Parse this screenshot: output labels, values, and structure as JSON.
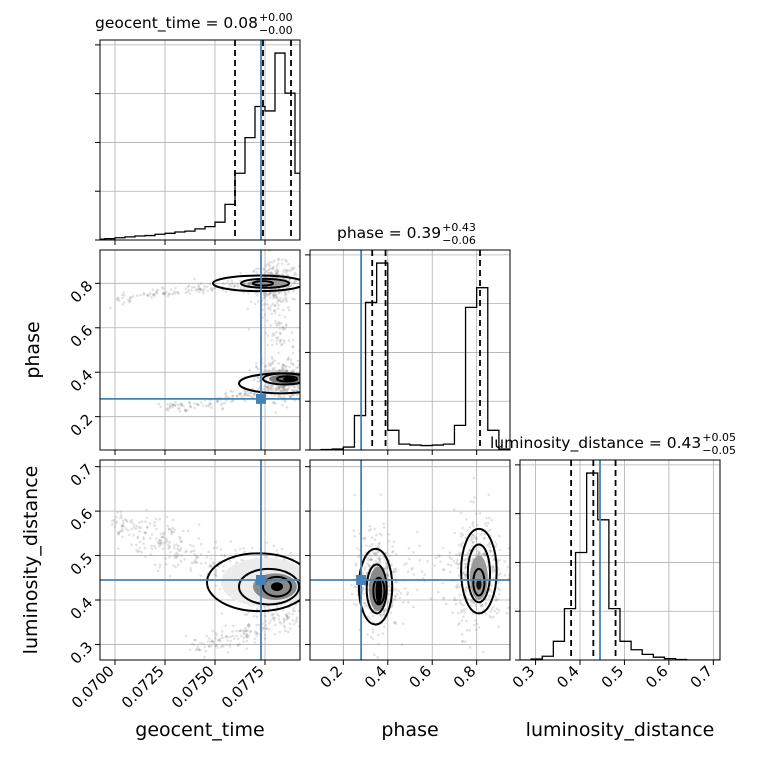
{
  "chart_data": {
    "type": "corner",
    "parameters": [
      "geocent_time",
      "phase",
      "luminosity_distance"
    ],
    "axis_labels": {
      "geocent_time": "geocent_time",
      "phase": "phase",
      "luminosity_distance": "luminosity_distance"
    },
    "ranges": {
      "geocent_time": [
        0.06925,
        0.07925
      ],
      "phase": [
        0.05,
        0.95
      ],
      "luminosity_distance": [
        0.265,
        0.715
      ]
    },
    "ticks": {
      "geocent_time": [
        "0.0700",
        "0.0725",
        "0.0750",
        "0.0775"
      ],
      "phase": [
        "0.2",
        "0.4",
        "0.6",
        "0.8"
      ],
      "luminosity_distance": [
        "0.3",
        "0.4",
        "0.5",
        "0.6",
        "0.7"
      ]
    },
    "tick_values": {
      "geocent_time": [
        0.07,
        0.0725,
        0.075,
        0.0775
      ],
      "phase": [
        0.2,
        0.4,
        0.6,
        0.8
      ],
      "luminosity_distance": [
        0.3,
        0.4,
        0.5,
        0.6,
        0.7
      ]
    },
    "titles": {
      "geocent_time": {
        "text": "geocent_time = 0.08",
        "plus": "+0.00",
        "minus": "−0.00"
      },
      "phase": {
        "text": "phase = 0.39",
        "plus": "+0.43",
        "minus": "−0.06"
      },
      "luminosity_distance": {
        "text": "luminosity_distance = 0.43",
        "plus": "+0.05",
        "minus": "−0.05"
      }
    },
    "truths": {
      "geocent_time": 0.0773,
      "phase": 0.28,
      "luminosity_distance": 0.445
    },
    "quantiles": {
      "geocent_time": [
        0.076,
        0.0774,
        0.0788
      ],
      "phase": [
        0.33,
        0.39,
        0.815
      ],
      "luminosity_distance": [
        0.38,
        0.43,
        0.48
      ]
    },
    "histograms": {
      "geocent_time": {
        "edges": [
          0.06925,
          0.0695,
          0.07,
          0.0705,
          0.071,
          0.0715,
          0.072,
          0.0725,
          0.073,
          0.0735,
          0.074,
          0.0745,
          0.075,
          0.0755,
          0.076,
          0.0765,
          0.077,
          0.0775,
          0.078,
          0.0785,
          0.079,
          0.07925
        ],
        "counts": [
          2,
          3,
          5,
          7,
          9,
          10,
          13,
          15,
          18,
          20,
          25,
          30,
          40,
          80,
          150,
          230,
          300,
          290,
          420,
          330,
          150
        ]
      },
      "phase": {
        "edges": [
          0.05,
          0.1,
          0.15,
          0.2,
          0.25,
          0.3,
          0.35,
          0.4,
          0.45,
          0.5,
          0.55,
          0.6,
          0.65,
          0.7,
          0.75,
          0.8,
          0.85,
          0.9,
          0.95
        ],
        "counts": [
          0,
          1,
          2,
          6,
          70,
          300,
          380,
          40,
          12,
          10,
          9,
          10,
          12,
          50,
          290,
          330,
          40,
          2
        ]
      },
      "luminosity_distance": {
        "edges": [
          0.265,
          0.29,
          0.315,
          0.34,
          0.365,
          0.39,
          0.415,
          0.44,
          0.465,
          0.49,
          0.515,
          0.54,
          0.565,
          0.59,
          0.615,
          0.64,
          0.665,
          0.69,
          0.715
        ],
        "counts": [
          0,
          2,
          8,
          40,
          110,
          230,
          400,
          300,
          110,
          40,
          22,
          12,
          6,
          3,
          1,
          0,
          0,
          0
        ]
      }
    },
    "grid": true
  }
}
